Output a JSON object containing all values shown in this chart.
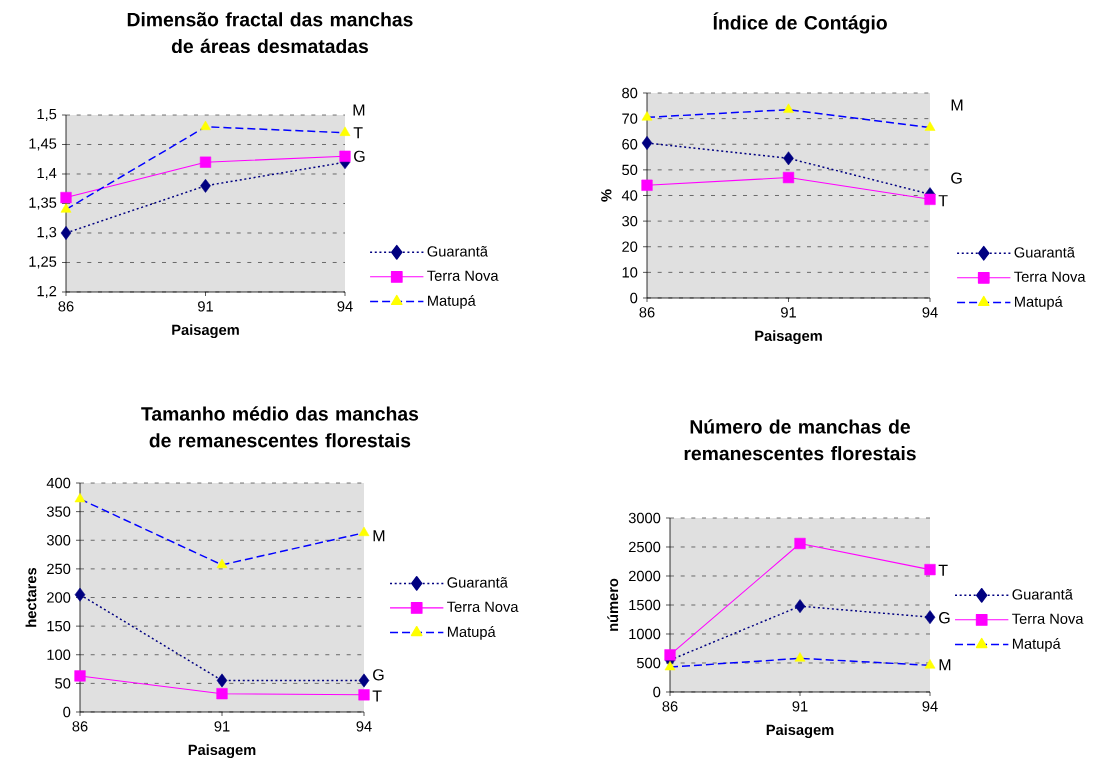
{
  "chart_data": [
    {
      "type": "line",
      "title": "Dimensão fractal das manchas de áreas desmatadas",
      "xlabel": "Paisagem",
      "categories": [
        "86",
        "91",
        "94"
      ],
      "series": [
        {
          "name": "Guarantã",
          "color": "#000080",
          "marker": "diamond",
          "line_style": "dotted",
          "values": [
            1.3,
            1.38,
            1.42
          ]
        },
        {
          "name": "Terra Nova",
          "color": "#ff00ff",
          "marker": "square",
          "line_style": "solid",
          "values": [
            1.36,
            1.42,
            1.43
          ]
        },
        {
          "name": "Matupá",
          "color": "#0000ff",
          "colors": [
            "#ffff00",
            "#ffff00",
            "#ffff00"
          ],
          "marker": "triangle",
          "line_style": "dashed",
          "values": [
            1.34,
            1.48,
            1.47
          ]
        }
      ],
      "ylim": [
        1.2,
        1.5
      ],
      "yticks": [
        {
          "value": 1.2,
          "label": "1,2"
        },
        {
          "value": 1.25,
          "label": "1,25"
        },
        {
          "value": 1.3,
          "label": "1,3"
        },
        {
          "value": 1.35,
          "label": "1,35"
        },
        {
          "value": 1.4,
          "label": "1,4"
        },
        {
          "value": 1.45,
          "label": "1,45"
        },
        {
          "value": 1.5,
          "label": "1,5"
        }
      ],
      "grid": "y",
      "legend": "right",
      "annotations": [
        "M",
        {
          "text": "T",
          "x": "94",
          "y": 1.47
        },
        {
          "text": "G",
          "x": "94",
          "y": 1.43
        }
      ]
    },
    {
      "type": "line",
      "title": "Índice de Contágio",
      "xlabel": "Paisagem",
      "ylabel": "%",
      "categories": [
        "86",
        "91",
        "94"
      ],
      "series": [
        {
          "name": "Guarantã",
          "color": "#000080",
          "marker": "diamond",
          "line_style": "dotted",
          "values": [
            60.5,
            54.5,
            40.5
          ]
        },
        {
          "name": "Terra Nova",
          "color": "#ff00ff",
          "marker": "square",
          "line_style": "solid",
          "values": [
            44,
            47,
            38.5
          ]
        },
        {
          "name": "Matupá",
          "color": "#0000ff",
          "colors": [
            "#ffff00",
            "#ffff00",
            "#ffff00"
          ],
          "marker": "triangle",
          "line_style": "dashed",
          "values": [
            70.5,
            73.5,
            66.5
          ]
        }
      ],
      "ylim": [
        0,
        80
      ],
      "yticks": [
        0,
        10,
        20,
        30,
        40,
        50,
        60,
        70,
        80
      ],
      "grid": "y",
      "legend": "right",
      "annotations": [
        "M",
        "G",
        {
          "text": "T",
          "x": "94",
          "y": 38
        }
      ]
    },
    {
      "type": "line",
      "title": "Tamanho médio das manchas de remanescentes florestais",
      "xlabel": "Paisagem",
      "ylabel": "hectares",
      "categories": [
        "86",
        "91",
        "94"
      ],
      "series": [
        {
          "name": "Guarantã",
          "color": "#000080",
          "marker": "diamond",
          "line_style": "dotted",
          "values": [
            205,
            55,
            55
          ]
        },
        {
          "name": "Terra Nova",
          "color": "#ff00ff",
          "marker": "square",
          "line_style": "solid",
          "values": [
            63,
            32,
            30
          ]
        },
        {
          "name": "Matupá",
          "color": "#0000ff",
          "colors": [
            "#ffff00",
            "#ffff00",
            "#ffff00"
          ],
          "marker": "triangle",
          "line_style": "dashed",
          "values": [
            372,
            257,
            313
          ]
        }
      ],
      "ylim": [
        0,
        400
      ],
      "yticks": [
        0,
        50,
        100,
        150,
        200,
        250,
        300,
        350,
        400
      ],
      "grid": "y",
      "legend": "right",
      "annotations": [
        {
          "text": "M",
          "x": "94",
          "y": 308
        },
        {
          "text": "G",
          "x": "94",
          "y": 65
        },
        {
          "text": "T",
          "x": "94",
          "y": 28
        }
      ]
    },
    {
      "type": "line",
      "title": "Número de manchas de remanescentes florestais",
      "xlabel": "Paisagem",
      "ylabel": "número",
      "categories": [
        "86",
        "91",
        "94"
      ],
      "series": [
        {
          "name": "Guarantã",
          "color": "#000080",
          "marker": "diamond",
          "line_style": "dotted",
          "values": [
            550,
            1480,
            1290
          ]
        },
        {
          "name": "Terra Nova",
          "color": "#ff00ff",
          "marker": "square",
          "line_style": "solid",
          "values": [
            640,
            2560,
            2110
          ]
        },
        {
          "name": "Matupá",
          "color": "#0000ff",
          "colors": [
            "#ffff00",
            "#ffff00",
            "#ffff00"
          ],
          "marker": "triangle",
          "line_style": "dashed",
          "values": [
            430,
            580,
            460
          ]
        }
      ],
      "ylim": [
        0,
        3000
      ],
      "yticks": [
        0,
        500,
        1000,
        1500,
        2000,
        2500,
        3000
      ],
      "grid": "y",
      "legend": "right",
      "annotations": [
        {
          "text": "T",
          "x": "94",
          "y": 2100
        },
        {
          "text": "G",
          "x": "94",
          "y": 1280
        },
        {
          "text": "M",
          "x": "94",
          "y": 470
        }
      ]
    }
  ]
}
